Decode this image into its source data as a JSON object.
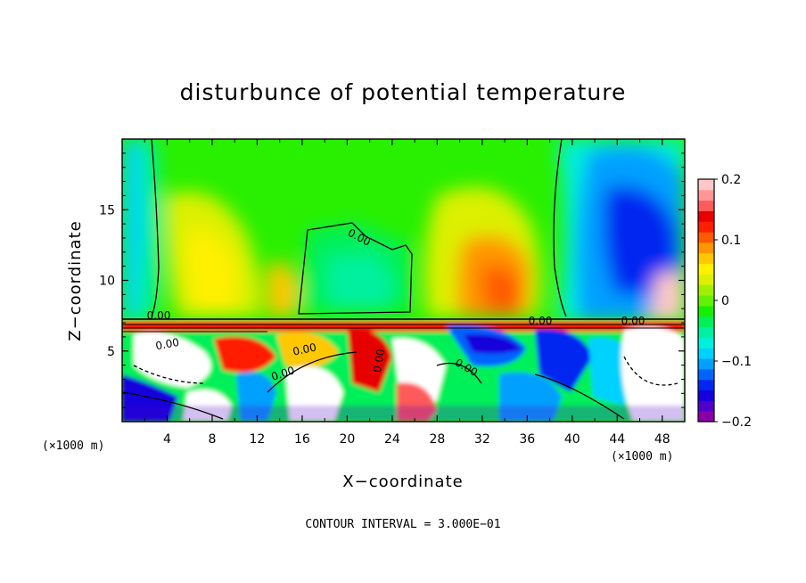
{
  "chart_data": {
    "type": "heatmap",
    "title": "disturbunce of potential temperature",
    "xlabel": "X−coordinate",
    "ylabel": "Z−coordinate",
    "x_unit_left": "(×1000 m)",
    "x_unit_right": "(×1000 m)",
    "xlim": [
      0,
      50
    ],
    "ylim": [
      0,
      20
    ],
    "xticks": [
      "4",
      "8",
      "12",
      "16",
      "20",
      "24",
      "28",
      "32",
      "36",
      "40",
      "44",
      "48"
    ],
    "yticks": [
      "5",
      "10",
      "15"
    ],
    "xtick_values": [
      4,
      8,
      12,
      16,
      20,
      24,
      28,
      32,
      36,
      40,
      44,
      48
    ],
    "ytick_values": [
      5,
      10,
      15
    ],
    "colorbar": {
      "ticks": [
        "0.2",
        "0.1",
        "0",
        "−0.1",
        "−0.2"
      ],
      "tick_values": [
        0.2,
        0.1,
        0,
        -0.1,
        -0.2
      ],
      "range": [
        -0.2,
        0.2
      ],
      "colors": [
        "#8a00a8",
        "#5000c8",
        "#1400dc",
        "#0028f0",
        "#0064ff",
        "#00a0ff",
        "#00d2ff",
        "#00f0dc",
        "#00f0a0",
        "#00f05a",
        "#14f000",
        "#64f000",
        "#a0f000",
        "#dcf000",
        "#fff000",
        "#ffc800",
        "#ff9600",
        "#ff5a00",
        "#ff1e00",
        "#e60000",
        "#ff5a5a",
        "#ff9696",
        "#ffc8c8"
      ]
    },
    "contour_labels": [
      "0.00",
      "0.00",
      "0.00",
      "0.00",
      "0.00",
      "0.00",
      "0.00",
      "0.00",
      "0.00"
    ],
    "footer": "CONTOUR INTERVAL = 3.000E−01"
  }
}
